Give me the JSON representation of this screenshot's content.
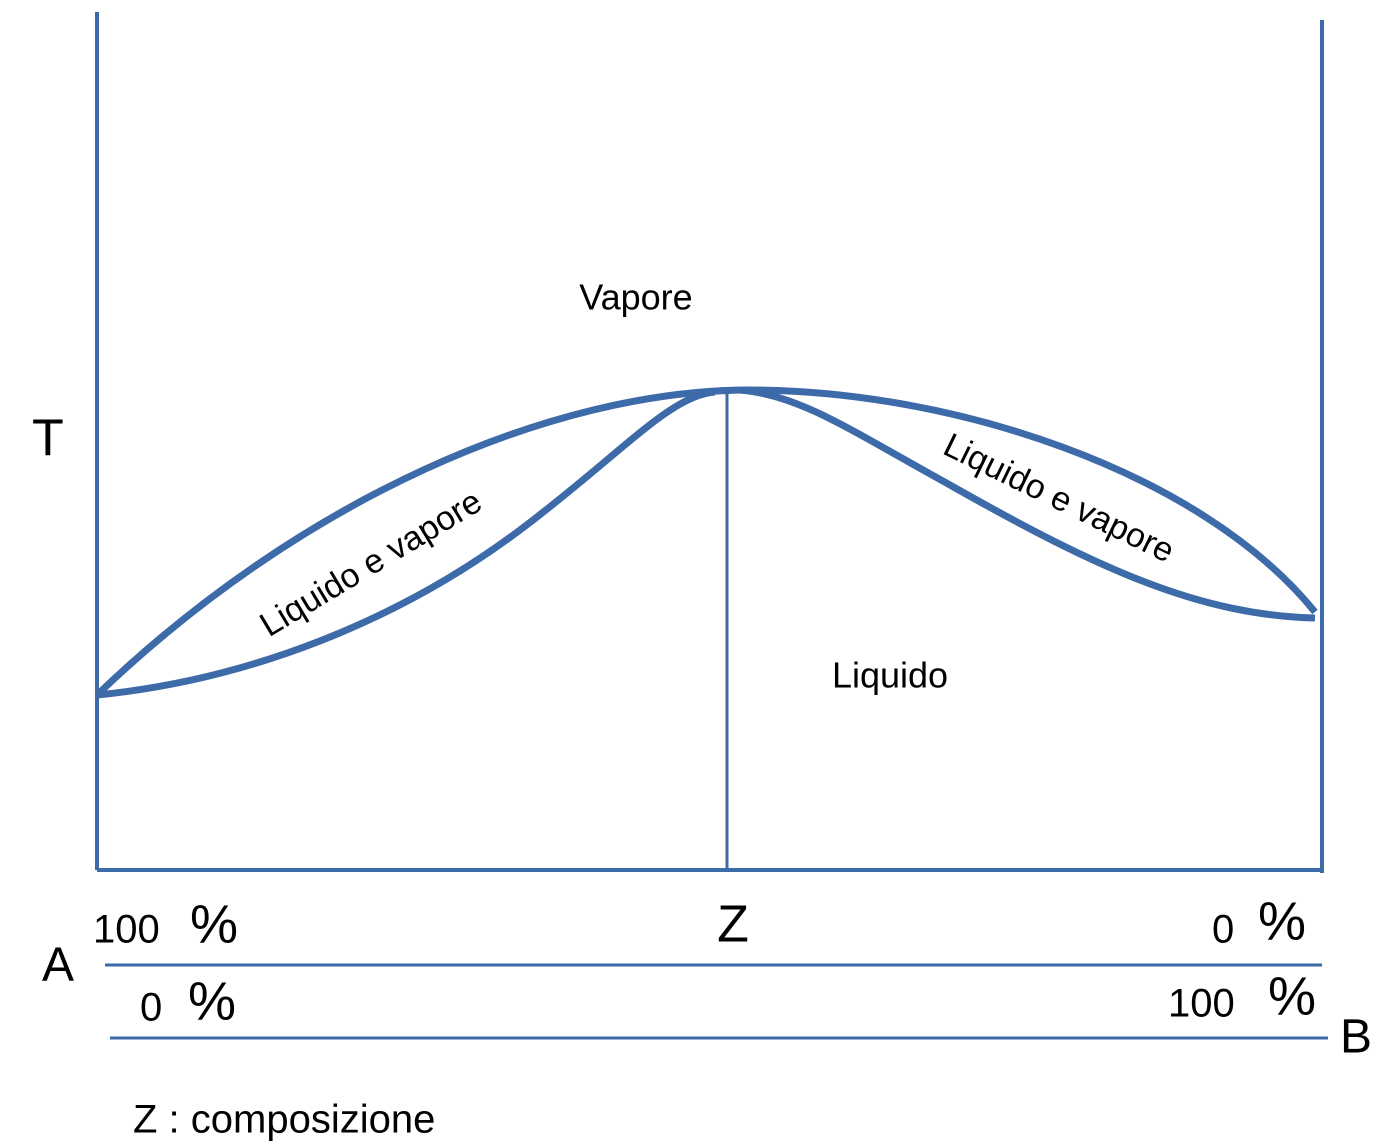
{
  "labels": {
    "y_axis": "T",
    "x_axis": "Z",
    "component_a": "A",
    "component_b": "B"
  },
  "regions": {
    "vapour": "Vapore",
    "two_phase_left": "Liquido e vapore",
    "two_phase_right": "Liquido e vapore",
    "liquid": "Liquido"
  },
  "scale": {
    "row_a": {
      "left": "100",
      "right": "0"
    },
    "row_b": {
      "left": "0",
      "right": "100"
    },
    "unit": "%"
  },
  "footnote": "Z : composizione"
}
